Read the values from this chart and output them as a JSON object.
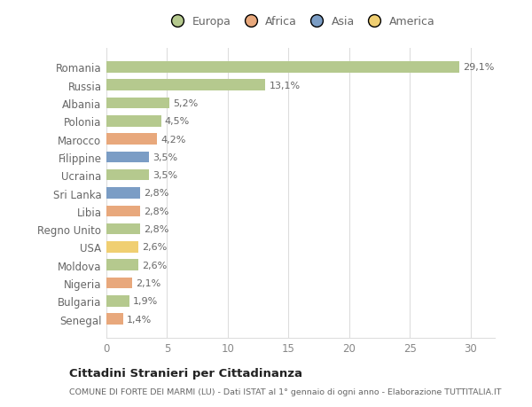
{
  "categories": [
    "Romania",
    "Russia",
    "Albania",
    "Polonia",
    "Marocco",
    "Filippine",
    "Ucraina",
    "Sri Lanka",
    "Libia",
    "Regno Unito",
    "USA",
    "Moldova",
    "Nigeria",
    "Bulgaria",
    "Senegal"
  ],
  "values": [
    29.1,
    13.1,
    5.2,
    4.5,
    4.2,
    3.5,
    3.5,
    2.8,
    2.8,
    2.8,
    2.6,
    2.6,
    2.1,
    1.9,
    1.4
  ],
  "labels": [
    "29,1%",
    "13,1%",
    "5,2%",
    "4,5%",
    "4,2%",
    "3,5%",
    "3,5%",
    "2,8%",
    "2,8%",
    "2,8%",
    "2,6%",
    "2,6%",
    "2,1%",
    "1,9%",
    "1,4%"
  ],
  "continents": [
    "Europa",
    "Europa",
    "Europa",
    "Europa",
    "Africa",
    "Asia",
    "Europa",
    "Asia",
    "Africa",
    "Europa",
    "America",
    "Europa",
    "Africa",
    "Europa",
    "Africa"
  ],
  "colors": {
    "Europa": "#b5c98e",
    "Africa": "#e8a87c",
    "Asia": "#7b9dc5",
    "America": "#f0cf72"
  },
  "xlim": [
    0,
    32
  ],
  "xticks": [
    0,
    5,
    10,
    15,
    20,
    25,
    30
  ],
  "title": "Cittadini Stranieri per Cittadinanza",
  "subtitle": "COMUNE DI FORTE DEI MARMI (LU) - Dati ISTAT al 1° gennaio di ogni anno - Elaborazione TUTTITALIA.IT",
  "background_color": "#ffffff",
  "grid_color": "#dddddd",
  "legend_order": [
    "Europa",
    "Africa",
    "Asia",
    "America"
  ],
  "label_color": "#666666",
  "tick_color": "#888888"
}
